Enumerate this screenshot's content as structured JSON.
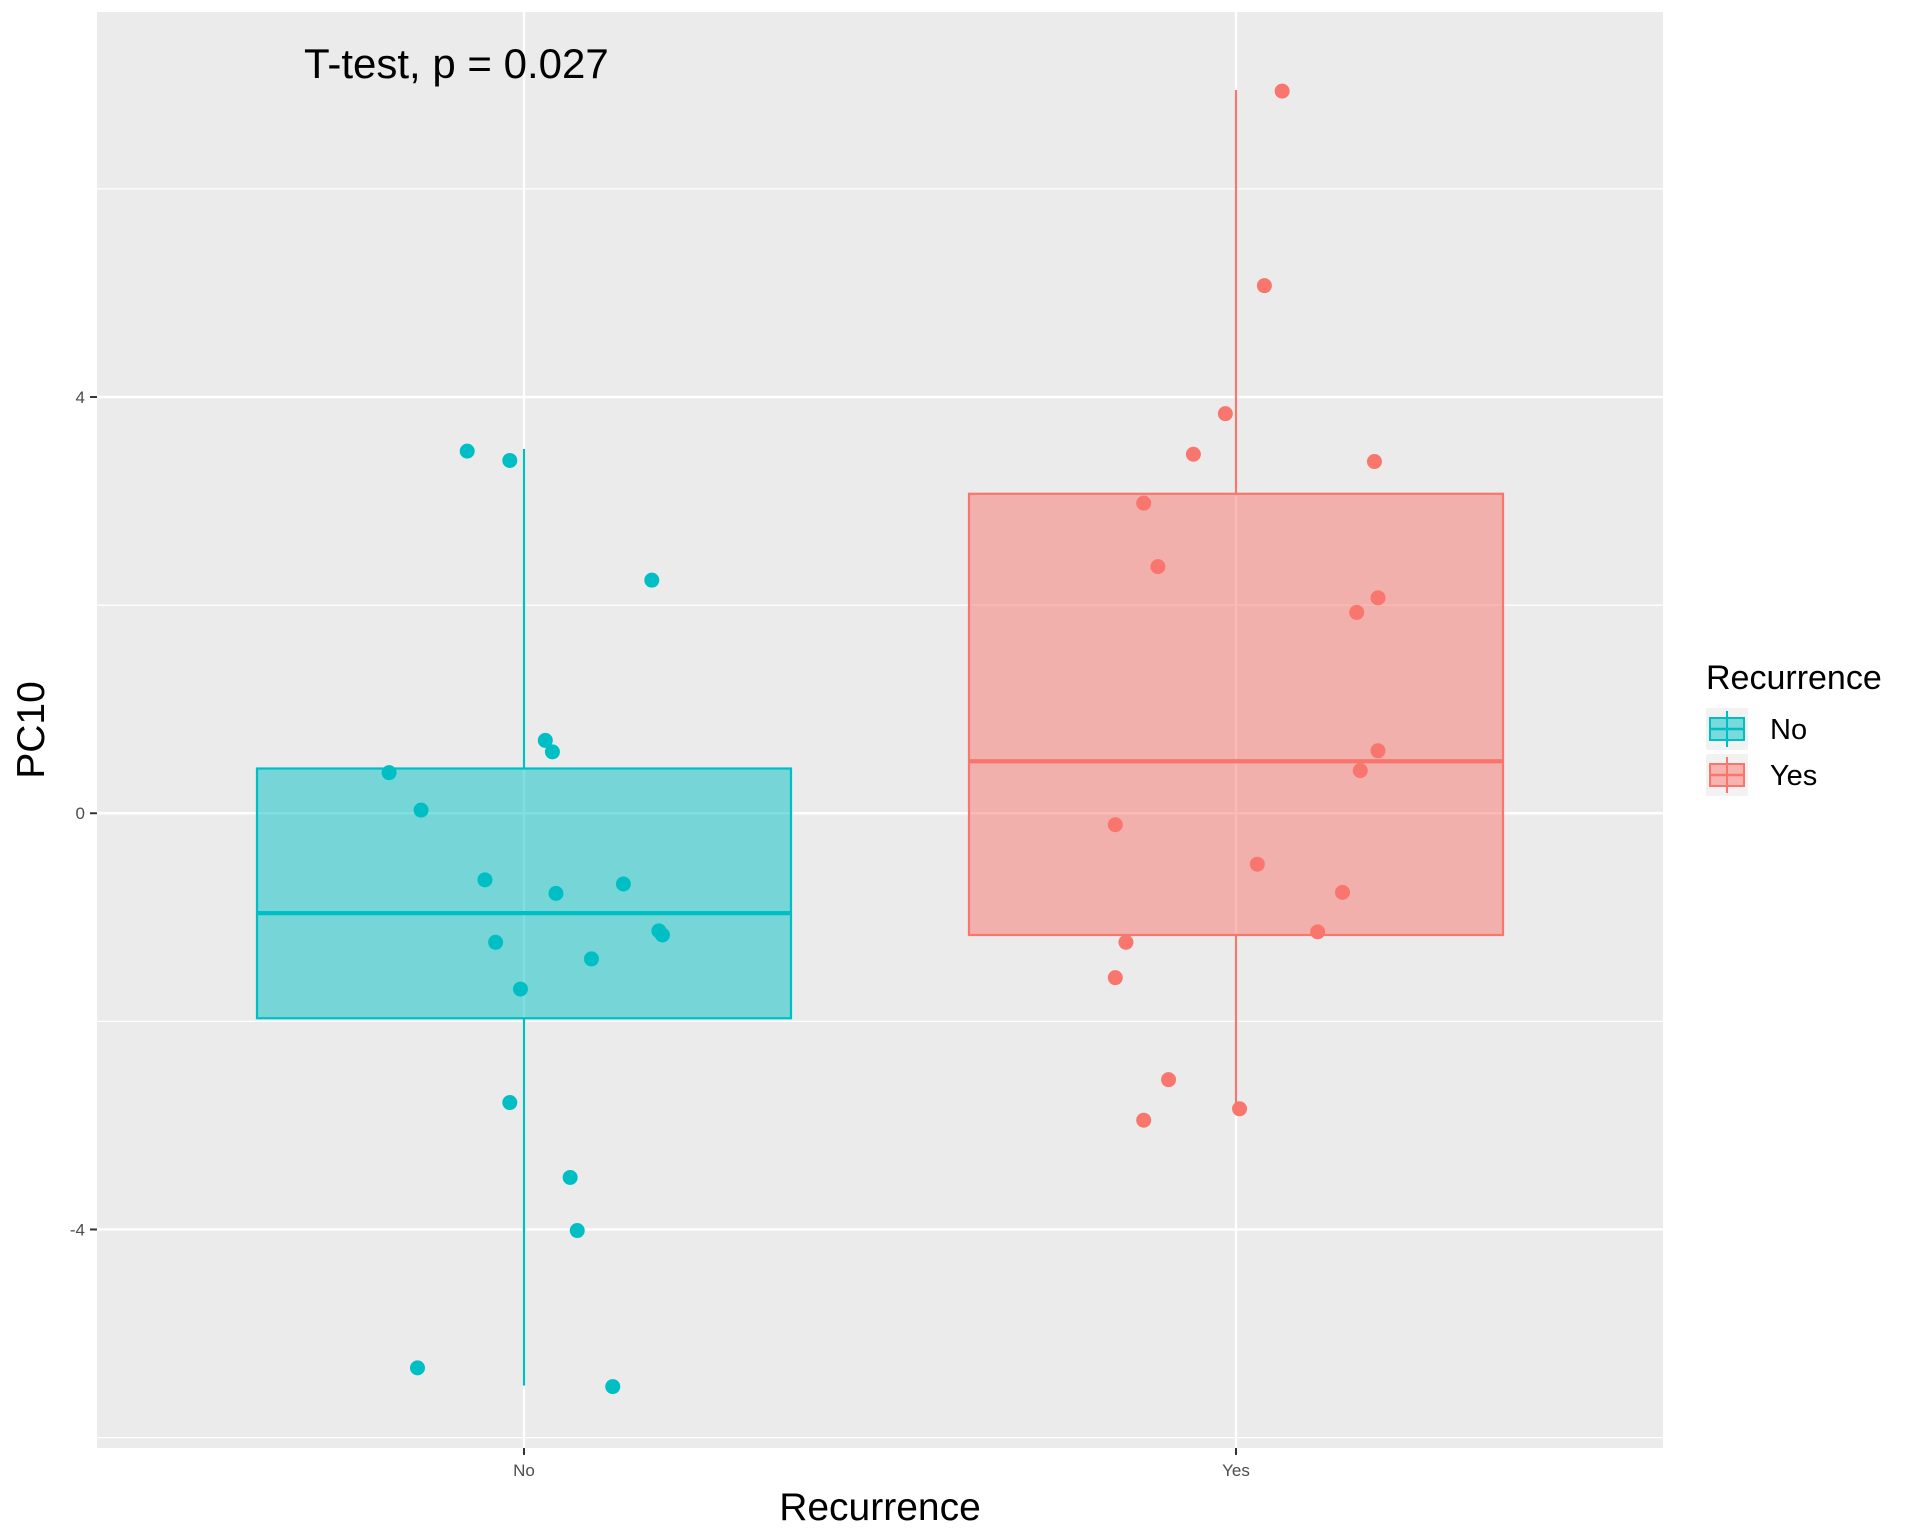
{
  "chart_data": {
    "type": "boxplot",
    "annotation": "T-test, p = 0.027",
    "xlabel": "Recurrence",
    "ylabel": "PC10",
    "categories": [
      "No",
      "Yes"
    ],
    "yticks": [
      -4,
      0,
      4
    ],
    "ylim": [
      -6.1,
      7.7
    ],
    "grid": true,
    "legend": {
      "title": "Recurrence",
      "position": "right",
      "entries": [
        {
          "label": "No",
          "color": "#00BFC4"
        },
        {
          "label": "Yes",
          "color": "#F8766D"
        }
      ]
    },
    "colors": {
      "No": "#00BFC4",
      "Yes": "#F8766D",
      "panel": "#EBEBEB",
      "grid": "#FFFFFF"
    },
    "boxes": [
      {
        "category": "No",
        "whisker_low": -5.5,
        "q1": -1.97,
        "median": -0.96,
        "q3": 0.43,
        "whisker_high": 3.5
      },
      {
        "category": "Yes",
        "whisker_low": -2.9,
        "q1": -1.17,
        "median": 0.5,
        "q3": 3.07,
        "whisker_high": 6.95
      }
    ],
    "points": [
      {
        "category": "No",
        "jitter": -0.08,
        "y": 3.48
      },
      {
        "category": "No",
        "jitter": -0.02,
        "y": 3.39
      },
      {
        "category": "No",
        "jitter": 0.18,
        "y": 2.24
      },
      {
        "category": "No",
        "jitter": 0.03,
        "y": 0.7
      },
      {
        "category": "No",
        "jitter": 0.04,
        "y": 0.59
      },
      {
        "category": "No",
        "jitter": -0.19,
        "y": 0.39
      },
      {
        "category": "No",
        "jitter": -0.145,
        "y": 0.03
      },
      {
        "category": "No",
        "jitter": -0.055,
        "y": -0.64
      },
      {
        "category": "No",
        "jitter": 0.045,
        "y": -0.77
      },
      {
        "category": "No",
        "jitter": 0.14,
        "y": -0.68
      },
      {
        "category": "No",
        "jitter": 0.19,
        "y": -1.13
      },
      {
        "category": "No",
        "jitter": 0.195,
        "y": -1.17
      },
      {
        "category": "No",
        "jitter": -0.04,
        "y": -1.24
      },
      {
        "category": "No",
        "jitter": 0.095,
        "y": -1.4
      },
      {
        "category": "No",
        "jitter": -0.005,
        "y": -1.69
      },
      {
        "category": "No",
        "jitter": -0.02,
        "y": -2.78
      },
      {
        "category": "No",
        "jitter": 0.065,
        "y": -3.5
      },
      {
        "category": "No",
        "jitter": 0.075,
        "y": -4.01
      },
      {
        "category": "No",
        "jitter": -0.15,
        "y": -5.33
      },
      {
        "category": "No",
        "jitter": 0.125,
        "y": -5.51
      },
      {
        "category": "Yes",
        "jitter": 0.065,
        "y": 6.94
      },
      {
        "category": "Yes",
        "jitter": 0.04,
        "y": 5.07
      },
      {
        "category": "Yes",
        "jitter": -0.015,
        "y": 3.84
      },
      {
        "category": "Yes",
        "jitter": -0.06,
        "y": 3.45
      },
      {
        "category": "Yes",
        "jitter": 0.195,
        "y": 3.38
      },
      {
        "category": "Yes",
        "jitter": -0.13,
        "y": 2.98
      },
      {
        "category": "Yes",
        "jitter": -0.11,
        "y": 2.37
      },
      {
        "category": "Yes",
        "jitter": 0.2,
        "y": 2.07
      },
      {
        "category": "Yes",
        "jitter": 0.17,
        "y": 1.93
      },
      {
        "category": "Yes",
        "jitter": 0.2,
        "y": 0.6
      },
      {
        "category": "Yes",
        "jitter": 0.175,
        "y": 0.41
      },
      {
        "category": "Yes",
        "jitter": -0.17,
        "y": -0.11
      },
      {
        "category": "Yes",
        "jitter": 0.03,
        "y": -0.49
      },
      {
        "category": "Yes",
        "jitter": 0.15,
        "y": -0.76
      },
      {
        "category": "Yes",
        "jitter": 0.115,
        "y": -1.14
      },
      {
        "category": "Yes",
        "jitter": -0.155,
        "y": -1.24
      },
      {
        "category": "Yes",
        "jitter": -0.17,
        "y": -1.58
      },
      {
        "category": "Yes",
        "jitter": -0.095,
        "y": -2.56
      },
      {
        "category": "Yes",
        "jitter": 0.005,
        "y": -2.84
      },
      {
        "category": "Yes",
        "jitter": -0.13,
        "y": -2.95
      }
    ]
  }
}
